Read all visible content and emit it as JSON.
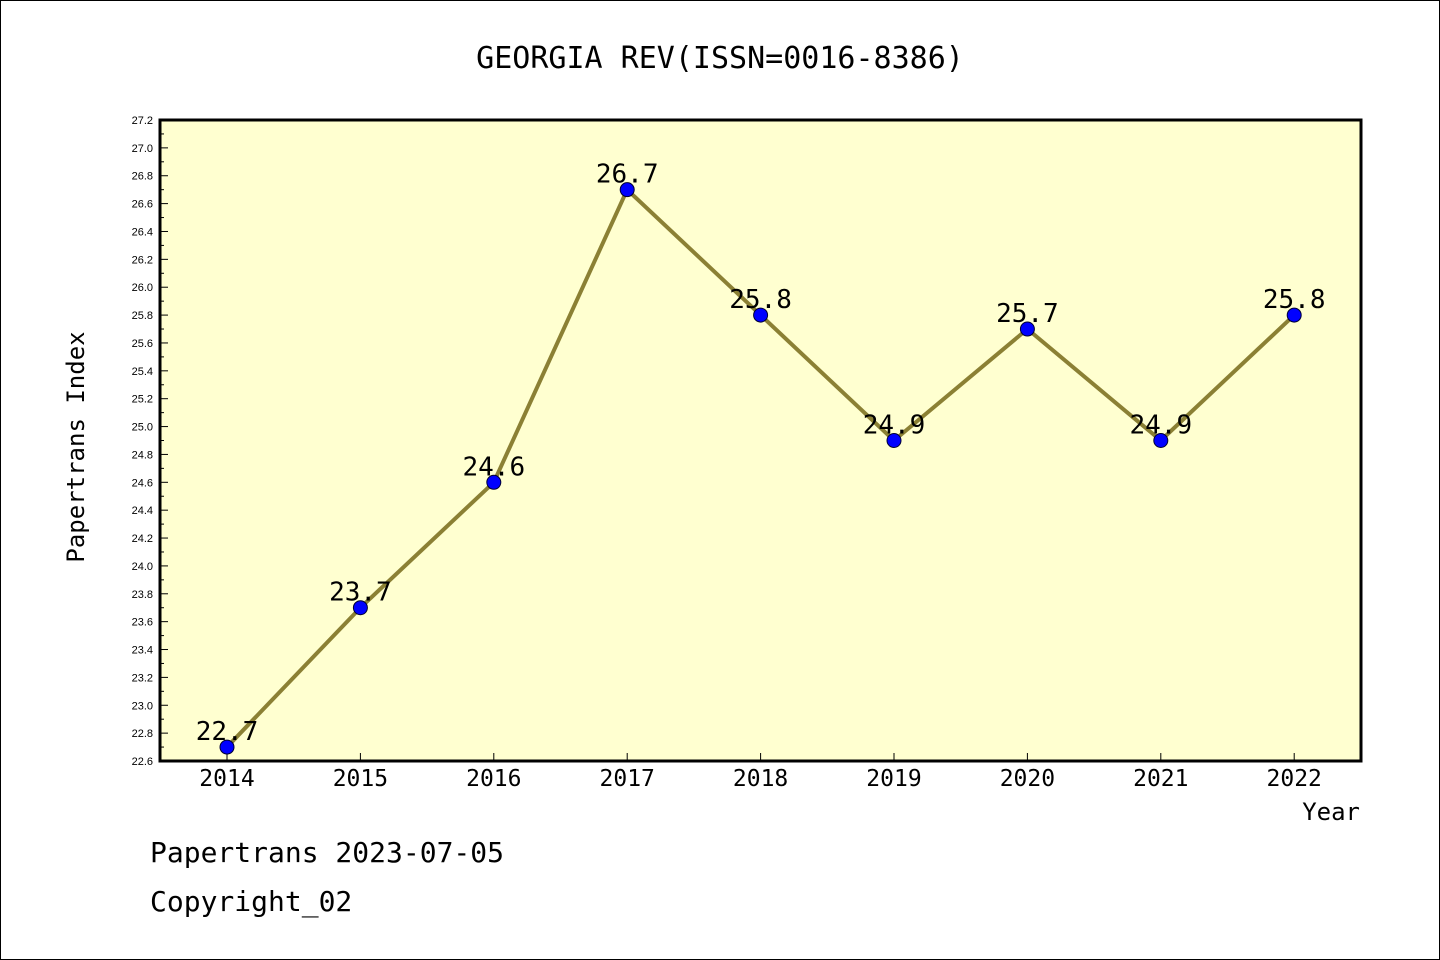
{
  "chart_data": {
    "type": "line",
    "title": "GEORGIA REV(ISSN=0016-8386)",
    "xlabel": "Year",
    "ylabel": "Papertrans Index",
    "categories": [
      "2014",
      "2015",
      "2016",
      "2017",
      "2018",
      "2019",
      "2020",
      "2021",
      "2022"
    ],
    "series": [
      {
        "values": [
          22.7,
          23.7,
          24.6,
          26.7,
          25.8,
          24.9,
          25.7,
          24.9,
          25.8
        ]
      }
    ],
    "data_labels": [
      "22.7",
      "23.7",
      "24.6",
      "26.7",
      "25.8",
      "24.9",
      "25.7",
      "24.9",
      "25.8"
    ],
    "ylim": [
      22.6,
      27.2
    ],
    "y_ticks": [
      "22.6",
      "22.8",
      "23.0",
      "23.2",
      "23.4",
      "23.6",
      "23.8",
      "24.0",
      "24.2",
      "24.4",
      "24.6",
      "24.8",
      "25.0",
      "25.2",
      "25.4",
      "25.6",
      "25.8",
      "26.0",
      "26.2",
      "26.4",
      "26.6",
      "26.8",
      "27.0",
      "27.2"
    ],
    "grid": false,
    "colors": {
      "plot_background": "#ffffd0",
      "line": "#8b8034",
      "marker": "#0000ff"
    }
  },
  "footer": {
    "line1": "Papertrans 2023-07-05",
    "line2": "Copyright_02"
  }
}
